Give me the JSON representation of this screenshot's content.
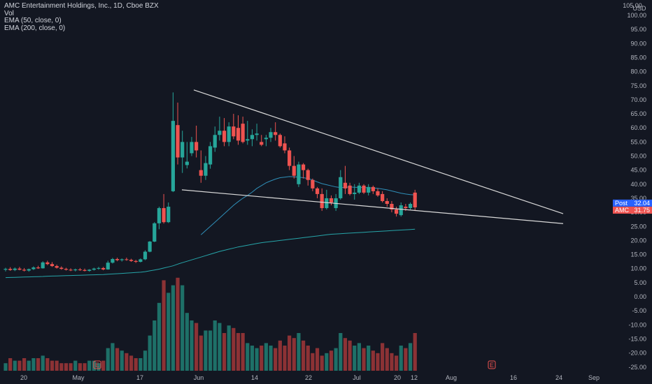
{
  "legend": {
    "symbol": "AMC Entertainment Holdings, Inc., 1D, Cboe BZX",
    "vol": "Vol",
    "ema50": "EMA (50, close, 0)",
    "ema200": "EMA (200, close, 0)"
  },
  "price_axis": {
    "currency": "USD",
    "top_partial_label": "105.00",
    "labels": [
      "100.00",
      "95.00",
      "90.00",
      "85.00",
      "80.00",
      "75.00",
      "70.00",
      "65.00",
      "60.00",
      "55.00",
      "50.00",
      "45.00",
      "40.00",
      "35.00",
      "30.00",
      "25.00",
      "20.00",
      "15.00",
      "10.00",
      "5.00",
      "0.00",
      "-5.00",
      "-10.00",
      "-15.00",
      "-20.00",
      "-25.00"
    ]
  },
  "date_axis": {
    "labels": [
      "20",
      "May",
      "17",
      "Jun",
      "14",
      "22",
      "Jul",
      "12",
      "20",
      "Aug",
      "16",
      "24",
      "Sep"
    ]
  },
  "badges": {
    "post_label": "Post",
    "post_price": "32.04",
    "amc_label": "AMC",
    "amc_price": "31.75"
  },
  "earnings_marker": "E",
  "colors": {
    "background": "#131722",
    "up": "#26a69a",
    "down": "#ef5350",
    "up_volume": "#1e7068",
    "down_volume": "#8c3235",
    "ema50": "#2f8fb8",
    "ema200": "#26a5a9",
    "trendline": "#d9d9d9",
    "post_badge": "#2962ff",
    "amc_badge": "#ef5350"
  },
  "chart_data": {
    "type": "candlestick",
    "symbol": "AMC",
    "timeframe": "1D",
    "y_axis_range": [
      -27,
      104
    ],
    "candles": [
      {
        "o": 9.6,
        "h": 10.3,
        "l": 9.0,
        "c": 9.9
      },
      {
        "o": 9.9,
        "h": 10.5,
        "l": 9.2,
        "c": 9.5
      },
      {
        "o": 9.5,
        "h": 10.4,
        "l": 9.1,
        "c": 10.0
      },
      {
        "o": 10.0,
        "h": 10.6,
        "l": 9.4,
        "c": 9.6
      },
      {
        "o": 9.6,
        "h": 10.2,
        "l": 9.0,
        "c": 9.3
      },
      {
        "o": 9.3,
        "h": 10.0,
        "l": 8.9,
        "c": 9.8
      },
      {
        "o": 9.8,
        "h": 10.8,
        "l": 9.5,
        "c": 10.4
      },
      {
        "o": 10.4,
        "h": 11.0,
        "l": 9.9,
        "c": 10.1
      },
      {
        "o": 10.1,
        "h": 12.6,
        "l": 10.0,
        "c": 12.2
      },
      {
        "o": 12.2,
        "h": 12.8,
        "l": 11.2,
        "c": 11.6
      },
      {
        "o": 11.6,
        "h": 12.3,
        "l": 10.6,
        "c": 10.9
      },
      {
        "o": 10.9,
        "h": 11.4,
        "l": 10.0,
        "c": 10.3
      },
      {
        "o": 10.3,
        "h": 10.8,
        "l": 9.6,
        "c": 9.9
      },
      {
        "o": 9.9,
        "h": 10.3,
        "l": 9.3,
        "c": 9.6
      },
      {
        "o": 9.6,
        "h": 10.1,
        "l": 9.1,
        "c": 9.4
      },
      {
        "o": 9.4,
        "h": 10.0,
        "l": 9.0,
        "c": 9.7
      },
      {
        "o": 9.7,
        "h": 10.2,
        "l": 9.2,
        "c": 9.5
      },
      {
        "o": 9.5,
        "h": 10.0,
        "l": 9.0,
        "c": 9.2
      },
      {
        "o": 9.2,
        "h": 9.8,
        "l": 8.9,
        "c": 9.6
      },
      {
        "o": 9.6,
        "h": 10.3,
        "l": 9.3,
        "c": 10.0
      },
      {
        "o": 10.0,
        "h": 10.6,
        "l": 9.6,
        "c": 10.2
      },
      {
        "o": 10.2,
        "h": 10.6,
        "l": 9.4,
        "c": 9.7
      },
      {
        "o": 9.7,
        "h": 12.8,
        "l": 9.6,
        "c": 12.1
      },
      {
        "o": 12.1,
        "h": 13.8,
        "l": 11.8,
        "c": 13.4
      },
      {
        "o": 13.4,
        "h": 13.9,
        "l": 12.6,
        "c": 13.0
      },
      {
        "o": 13.0,
        "h": 13.6,
        "l": 12.5,
        "c": 13.3
      },
      {
        "o": 13.3,
        "h": 13.9,
        "l": 12.8,
        "c": 13.1
      },
      {
        "o": 13.1,
        "h": 13.5,
        "l": 12.4,
        "c": 12.7
      },
      {
        "o": 12.7,
        "h": 13.1,
        "l": 12.0,
        "c": 12.4
      },
      {
        "o": 12.4,
        "h": 13.6,
        "l": 12.2,
        "c": 13.3
      },
      {
        "o": 13.3,
        "h": 16.5,
        "l": 13.0,
        "c": 16.0
      },
      {
        "o": 16.0,
        "h": 19.8,
        "l": 15.8,
        "c": 19.6
      },
      {
        "o": 19.6,
        "h": 26.5,
        "l": 19.4,
        "c": 26.1
      },
      {
        "o": 26.1,
        "h": 32.0,
        "l": 24.0,
        "c": 31.5
      },
      {
        "o": 31.5,
        "h": 36.5,
        "l": 26.0,
        "c": 26.5
      },
      {
        "o": 26.5,
        "h": 33.5,
        "l": 26.2,
        "c": 32.0
      },
      {
        "o": 37.5,
        "h": 72.6,
        "l": 37.2,
        "c": 62.5
      },
      {
        "o": 61.0,
        "h": 69.0,
        "l": 47.0,
        "c": 49.5
      },
      {
        "o": 49.5,
        "h": 59.0,
        "l": 44.0,
        "c": 55.0
      },
      {
        "o": 46.8,
        "h": 55.0,
        "l": 45.6,
        "c": 48.0
      },
      {
        "o": 51.0,
        "h": 56.8,
        "l": 50.0,
        "c": 55.0
      },
      {
        "o": 55.0,
        "h": 60.8,
        "l": 49.5,
        "c": 52.0
      },
      {
        "o": 45.0,
        "h": 52.0,
        "l": 40.5,
        "c": 43.0
      },
      {
        "o": 43.0,
        "h": 50.0,
        "l": 41.5,
        "c": 47.5
      },
      {
        "o": 47.0,
        "h": 55.0,
        "l": 45.5,
        "c": 53.5
      },
      {
        "o": 53.0,
        "h": 60.5,
        "l": 51.5,
        "c": 57.5
      },
      {
        "o": 57.5,
        "h": 64.0,
        "l": 55.5,
        "c": 59.0
      },
      {
        "o": 59.0,
        "h": 63.5,
        "l": 53.5,
        "c": 55.0
      },
      {
        "o": 55.0,
        "h": 62.0,
        "l": 53.5,
        "c": 60.5
      },
      {
        "o": 60.5,
        "h": 65.0,
        "l": 56.0,
        "c": 57.0
      },
      {
        "o": 60.0,
        "h": 64.5,
        "l": 54.0,
        "c": 55.5
      },
      {
        "o": 61.5,
        "h": 64.0,
        "l": 54.5,
        "c": 55.0
      },
      {
        "o": 55.5,
        "h": 62.5,
        "l": 54.0,
        "c": 56.0
      },
      {
        "o": 56.0,
        "h": 59.5,
        "l": 53.5,
        "c": 57.5
      },
      {
        "o": 57.5,
        "h": 61.5,
        "l": 55.5,
        "c": 58.0
      },
      {
        "o": 55.0,
        "h": 57.5,
        "l": 53.5,
        "c": 54.0
      },
      {
        "o": 56.0,
        "h": 57.5,
        "l": 53.5,
        "c": 56.5
      },
      {
        "o": 56.5,
        "h": 60.0,
        "l": 55.0,
        "c": 58.5
      },
      {
        "o": 58.5,
        "h": 62.0,
        "l": 55.5,
        "c": 57.5
      },
      {
        "o": 57.5,
        "h": 58.0,
        "l": 53.0,
        "c": 53.5
      },
      {
        "o": 54.5,
        "h": 57.0,
        "l": 51.0,
        "c": 52.0
      },
      {
        "o": 52.0,
        "h": 53.0,
        "l": 45.0,
        "c": 46.5
      },
      {
        "o": 46.5,
        "h": 50.0,
        "l": 42.0,
        "c": 43.0
      },
      {
        "o": 40.0,
        "h": 48.0,
        "l": 39.0,
        "c": 47.0
      },
      {
        "o": 47.0,
        "h": 47.5,
        "l": 42.0,
        "c": 45.0
      },
      {
        "o": 45.0,
        "h": 45.5,
        "l": 39.5,
        "c": 41.5
      },
      {
        "o": 41.5,
        "h": 42.0,
        "l": 37.5,
        "c": 38.5
      },
      {
        "o": 38.5,
        "h": 39.0,
        "l": 35.0,
        "c": 36.5
      },
      {
        "o": 36.5,
        "h": 38.5,
        "l": 30.5,
        "c": 31.5
      },
      {
        "o": 31.5,
        "h": 38.0,
        "l": 31.0,
        "c": 35.0
      },
      {
        "o": 35.0,
        "h": 36.0,
        "l": 32.5,
        "c": 33.5
      },
      {
        "o": 31.5,
        "h": 36.5,
        "l": 30.5,
        "c": 35.0
      },
      {
        "o": 35.0,
        "h": 45.0,
        "l": 34.5,
        "c": 42.5
      },
      {
        "o": 40.5,
        "h": 46.5,
        "l": 36.5,
        "c": 38.5
      },
      {
        "o": 39.5,
        "h": 40.5,
        "l": 36.0,
        "c": 36.5
      },
      {
        "o": 36.5,
        "h": 40.0,
        "l": 34.5,
        "c": 37.0
      },
      {
        "o": 37.0,
        "h": 40.5,
        "l": 36.5,
        "c": 39.5
      },
      {
        "o": 39.5,
        "h": 40.0,
        "l": 36.5,
        "c": 37.0
      },
      {
        "o": 37.0,
        "h": 40.0,
        "l": 36.0,
        "c": 39.0
      },
      {
        "o": 39.0,
        "h": 39.5,
        "l": 36.5,
        "c": 37.5
      },
      {
        "o": 37.5,
        "h": 38.5,
        "l": 35.5,
        "c": 36.0
      },
      {
        "o": 36.5,
        "h": 37.5,
        "l": 33.5,
        "c": 34.0
      },
      {
        "o": 34.0,
        "h": 35.0,
        "l": 32.0,
        "c": 33.0
      },
      {
        "o": 33.0,
        "h": 34.0,
        "l": 30.0,
        "c": 31.0
      },
      {
        "o": 31.0,
        "h": 32.0,
        "l": 28.5,
        "c": 29.5
      },
      {
        "o": 29.0,
        "h": 33.5,
        "l": 28.5,
        "c": 32.5
      },
      {
        "o": 32.0,
        "h": 33.0,
        "l": 30.5,
        "c": 31.5
      },
      {
        "o": 31.5,
        "h": 33.5,
        "l": 31.0,
        "c": 33.0
      },
      {
        "o": 37.0,
        "h": 38.0,
        "l": 30.5,
        "c": 31.75
      }
    ],
    "volume": [
      3,
      5,
      4,
      4,
      5,
      4,
      5,
      5,
      6,
      5,
      4,
      4,
      3,
      3,
      3,
      4,
      3,
      3,
      4,
      4,
      3,
      4,
      9,
      11,
      9,
      8,
      7,
      6,
      5,
      5,
      8,
      14,
      20,
      27,
      36,
      31,
      34,
      37,
      34,
      23,
      20,
      19,
      14,
      16,
      16,
      20,
      19,
      15,
      18,
      17,
      15,
      15,
      11,
      10,
      9,
      10,
      11,
      10,
      9,
      12,
      10,
      14,
      13,
      15,
      12,
      10,
      7,
      9,
      6,
      7,
      8,
      9,
      15,
      13,
      12,
      10,
      11,
      9,
      10,
      8,
      7,
      11,
      9,
      7,
      6,
      10,
      9,
      11,
      15
    ],
    "volume_up": [
      true,
      false,
      true,
      false,
      false,
      true,
      true,
      false,
      true,
      false,
      false,
      false,
      false,
      false,
      false,
      true,
      false,
      false,
      true,
      true,
      true,
      false,
      true,
      true,
      false,
      true,
      false,
      false,
      false,
      true,
      true,
      true,
      true,
      true,
      false,
      true,
      true,
      false,
      true,
      true,
      true,
      false,
      false,
      true,
      true,
      true,
      true,
      false,
      true,
      false,
      false,
      false,
      true,
      true,
      true,
      false,
      true,
      true,
      false,
      false,
      false,
      false,
      false,
      true,
      false,
      false,
      false,
      false,
      false,
      true,
      false,
      true,
      true,
      false,
      false,
      true,
      true,
      false,
      true,
      false,
      false,
      false,
      false,
      false,
      false,
      true,
      false,
      true,
      false
    ],
    "ema50": [
      null,
      null,
      null,
      null,
      null,
      null,
      null,
      null,
      null,
      null,
      null,
      null,
      null,
      null,
      null,
      null,
      null,
      null,
      null,
      null,
      null,
      null,
      null,
      null,
      null,
      null,
      null,
      null,
      null,
      null,
      null,
      null,
      null,
      null,
      null,
      null,
      null,
      null,
      null,
      null,
      null,
      null,
      22,
      23.5,
      25,
      26.5,
      28,
      29.5,
      31,
      32.5,
      33.8,
      35,
      36,
      37.2,
      38.5,
      39.5,
      40.5,
      41.2,
      41.8,
      42.3,
      42.5,
      42.7,
      42.6,
      42.5,
      42.3,
      42.0,
      41.5,
      40.8,
      40.2,
      39.8,
      39.4,
      39.0,
      38.8,
      38.9,
      39.0,
      38.9,
      38.8,
      38.8,
      38.7,
      38.6,
      38.5,
      38.3,
      38.0,
      37.6,
      37.2,
      36.8,
      36.5,
      36.3,
      36.2
    ],
    "ema200": [
      6.8,
      6.85,
      6.9,
      6.95,
      7.0,
      7.05,
      7.1,
      7.15,
      7.2,
      7.3,
      7.35,
      7.4,
      7.45,
      7.5,
      7.55,
      7.6,
      7.65,
      7.7,
      7.75,
      7.8,
      7.85,
      7.9,
      8.0,
      8.1,
      8.2,
      8.3,
      8.4,
      8.5,
      8.6,
      8.7,
      8.9,
      9.2,
      9.5,
      9.8,
      10.2,
      10.6,
      11.0,
      11.6,
      12.1,
      12.6,
      13.1,
      13.6,
      14.1,
      14.6,
      15.1,
      15.6,
      16.1,
      16.5,
      16.9,
      17.3,
      17.7,
      18.0,
      18.3,
      18.6,
      18.9,
      19.2,
      19.4,
      19.6,
      19.8,
      20.0,
      20.2,
      20.4,
      20.6,
      20.8,
      21.0,
      21.2,
      21.4,
      21.6,
      21.8,
      22.0,
      22.2,
      22.3,
      22.4,
      22.5,
      22.6,
      22.7,
      22.8,
      22.9,
      23.0,
      23.1,
      23.2,
      23.3,
      23.4,
      23.5,
      23.6,
      23.7,
      23.8,
      23.9,
      24.0
    ],
    "trendlines": [
      {
        "name": "upper",
        "from": {
          "bar": 36,
          "price": 73.5
        },
        "to": {
          "bar": 111,
          "price": 29.5
        }
      },
      {
        "name": "lower",
        "from": {
          "bar": 30,
          "price": 38.0
        },
        "to": {
          "bar": 111,
          "price": 26.0
        }
      }
    ],
    "last_close": 31.75,
    "post_market": 32.04
  }
}
